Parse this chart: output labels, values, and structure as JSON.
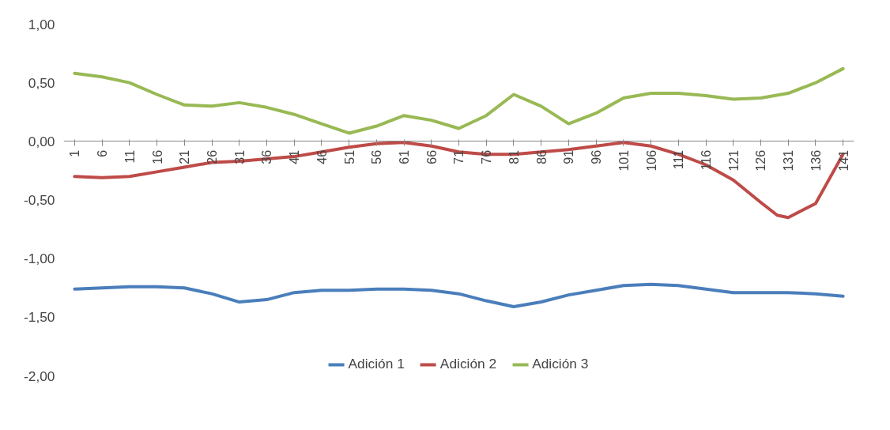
{
  "chart_data": {
    "type": "line",
    "xlim": [
      -1,
      143
    ],
    "xticks": [
      1,
      6,
      11,
      16,
      21,
      26,
      31,
      36,
      41,
      46,
      51,
      56,
      61,
      66,
      71,
      76,
      81,
      86,
      91,
      96,
      101,
      106,
      111,
      116,
      121,
      126,
      131,
      136,
      141
    ],
    "ylim": [
      -2,
      1
    ],
    "yticks": [
      {
        "value": 1,
        "label": "1,00"
      },
      {
        "value": 0.5,
        "label": "0,50"
      },
      {
        "value": 0,
        "label": "0,00"
      },
      {
        "value": -0.5,
        "label": "-0,50"
      },
      {
        "value": -1,
        "label": "-1,00"
      },
      {
        "value": -1.5,
        "label": "-1,50"
      },
      {
        "value": -2,
        "label": "-2,00"
      }
    ],
    "grid": false,
    "legend": "bottom",
    "marker": "none",
    "line_style": "solid",
    "series": [
      {
        "name": "Adición 1",
        "color": "#4a7ebb",
        "x": [
          1,
          6,
          11,
          16,
          21,
          26,
          31,
          36,
          41,
          46,
          51,
          56,
          61,
          66,
          71,
          76,
          81,
          86,
          91,
          96,
          101,
          106,
          111,
          116,
          121,
          126,
          131,
          136,
          141
        ],
        "values": [
          -1.26,
          -1.25,
          -1.24,
          -1.24,
          -1.25,
          -1.3,
          -1.37,
          -1.35,
          -1.29,
          -1.27,
          -1.27,
          -1.26,
          -1.26,
          -1.27,
          -1.3,
          -1.36,
          -1.41,
          -1.37,
          -1.31,
          -1.27,
          -1.23,
          -1.22,
          -1.23,
          -1.26,
          -1.29,
          -1.29,
          -1.29,
          -1.3,
          -1.32
        ]
      },
      {
        "name": "Adición 2",
        "color": "#be4b48",
        "x": [
          1,
          6,
          11,
          16,
          21,
          26,
          31,
          36,
          41,
          46,
          51,
          56,
          61,
          66,
          71,
          76,
          81,
          86,
          91,
          96,
          101,
          106,
          111,
          116,
          121,
          126,
          129,
          131,
          136,
          141
        ],
        "values": [
          -0.3,
          -0.31,
          -0.3,
          -0.26,
          -0.22,
          -0.18,
          -0.17,
          -0.15,
          -0.13,
          -0.09,
          -0.05,
          -0.02,
          -0.01,
          -0.04,
          -0.09,
          -0.11,
          -0.11,
          -0.09,
          -0.07,
          -0.04,
          -0.01,
          -0.04,
          -0.11,
          -0.2,
          -0.33,
          -0.52,
          -0.63,
          -0.65,
          -0.53,
          -0.11
        ]
      },
      {
        "name": "Adición 3",
        "color": "#98b954",
        "x": [
          1,
          6,
          11,
          16,
          21,
          26,
          31,
          36,
          41,
          46,
          51,
          56,
          61,
          66,
          71,
          76,
          81,
          86,
          91,
          96,
          101,
          106,
          111,
          116,
          121,
          126,
          131,
          136,
          141
        ],
        "values": [
          0.58,
          0.55,
          0.5,
          0.4,
          0.31,
          0.3,
          0.33,
          0.29,
          0.23,
          0.15,
          0.07,
          0.13,
          0.22,
          0.18,
          0.11,
          0.22,
          0.4,
          0.3,
          0.15,
          0.24,
          0.37,
          0.41,
          0.41,
          0.39,
          0.36,
          0.37,
          0.41,
          0.5,
          0.62
        ]
      }
    ]
  }
}
